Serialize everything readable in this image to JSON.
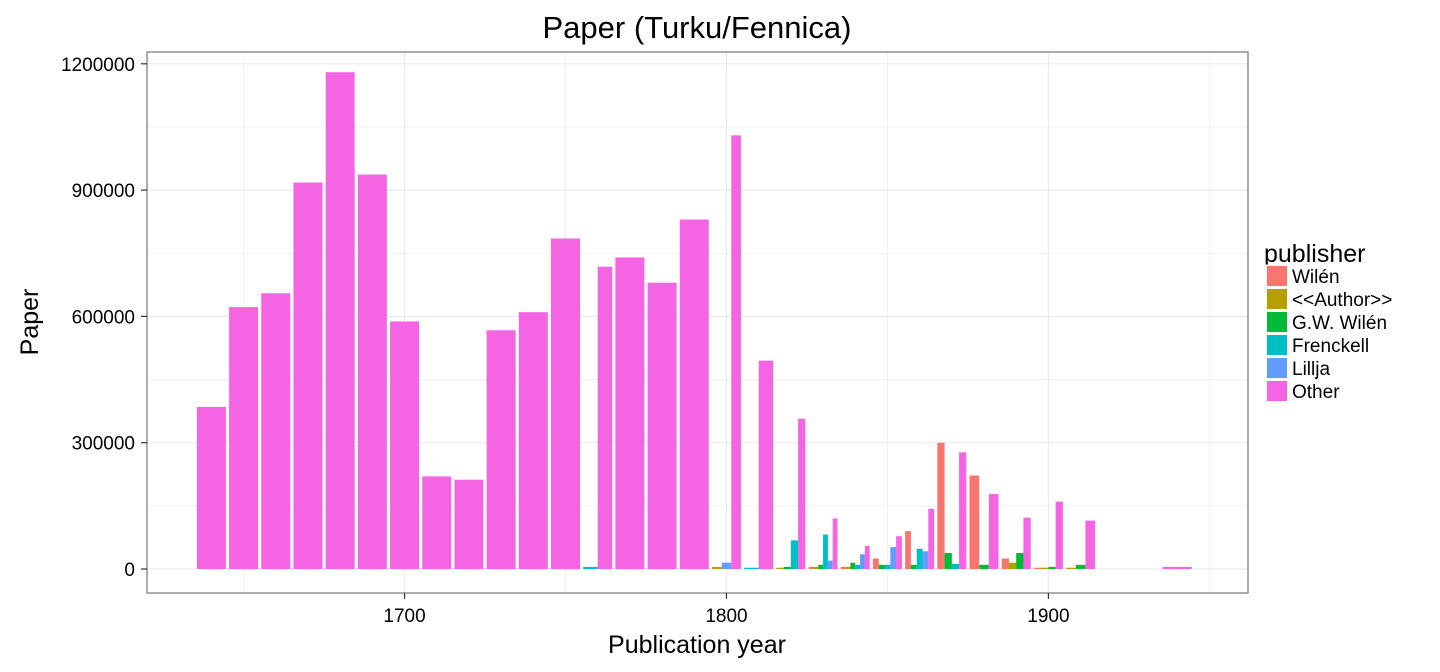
{
  "chart_data": {
    "type": "bar",
    "title": "Paper (Turku/Fennica)",
    "xlabel": "Publication year",
    "ylabel": "Paper",
    "xlim": [
      1620,
      1962
    ],
    "ylim": [
      -57000,
      1228000
    ],
    "x_ticks": [
      1700,
      1800,
      1900
    ],
    "y_ticks": [
      0,
      300000,
      600000,
      900000,
      1200000
    ],
    "grid": true,
    "legend_placement": "right",
    "legend_title": "publisher",
    "bin_width_years": 10,
    "series": [
      {
        "name": "Wilén",
        "color": "#F8766D",
        "points": [
          [
            1830,
            5000
          ],
          [
            1840,
            5000
          ],
          [
            1850,
            25000
          ],
          [
            1860,
            90000
          ],
          [
            1870,
            300000
          ],
          [
            1880,
            222000
          ],
          [
            1890,
            25000
          ],
          [
            1900,
            3000
          ]
        ]
      },
      {
        "name": "<<Author>>",
        "color": "#B79F00",
        "points": [
          [
            1800,
            5000
          ],
          [
            1820,
            3000
          ],
          [
            1830,
            5000
          ],
          [
            1840,
            5000
          ],
          [
            1890,
            15000
          ],
          [
            1900,
            3000
          ],
          [
            1910,
            3000
          ]
        ]
      },
      {
        "name": "G.W. Wilén",
        "color": "#00BA38",
        "points": [
          [
            1820,
            5000
          ],
          [
            1830,
            10000
          ],
          [
            1840,
            15000
          ],
          [
            1850,
            10000
          ],
          [
            1860,
            10000
          ],
          [
            1870,
            38000
          ],
          [
            1880,
            10000
          ],
          [
            1890,
            38000
          ],
          [
            1900,
            5000
          ],
          [
            1910,
            10000
          ]
        ]
      },
      {
        "name": "Frenckell",
        "color": "#00BFC4",
        "points": [
          [
            1760,
            5000
          ],
          [
            1810,
            3000
          ],
          [
            1820,
            68000
          ],
          [
            1830,
            82000
          ],
          [
            1840,
            10000
          ],
          [
            1850,
            10000
          ],
          [
            1860,
            48000
          ],
          [
            1870,
            12000
          ]
        ]
      },
      {
        "name": "Lillja",
        "color": "#619CFF",
        "points": [
          [
            1800,
            15000
          ],
          [
            1830,
            20000
          ],
          [
            1840,
            35000
          ],
          [
            1850,
            52000
          ],
          [
            1860,
            42000
          ]
        ]
      },
      {
        "name": "Other",
        "color": "#F564E3",
        "points": [
          [
            1640,
            385000
          ],
          [
            1650,
            622000
          ],
          [
            1660,
            655000
          ],
          [
            1670,
            918000
          ],
          [
            1680,
            1180000
          ],
          [
            1690,
            937000
          ],
          [
            1700,
            588000
          ],
          [
            1710,
            220000
          ],
          [
            1720,
            212000
          ],
          [
            1730,
            567000
          ],
          [
            1740,
            610000
          ],
          [
            1750,
            785000
          ],
          [
            1760,
            718000
          ],
          [
            1770,
            740000
          ],
          [
            1780,
            680000
          ],
          [
            1790,
            830000
          ],
          [
            1800,
            1030000
          ],
          [
            1810,
            495000
          ],
          [
            1820,
            357000
          ],
          [
            1830,
            120000
          ],
          [
            1840,
            55000
          ],
          [
            1850,
            78000
          ],
          [
            1860,
            143000
          ],
          [
            1870,
            277000
          ],
          [
            1880,
            178000
          ],
          [
            1890,
            122000
          ],
          [
            1900,
            160000
          ],
          [
            1910,
            115000
          ],
          [
            1940,
            5000
          ]
        ]
      }
    ]
  }
}
